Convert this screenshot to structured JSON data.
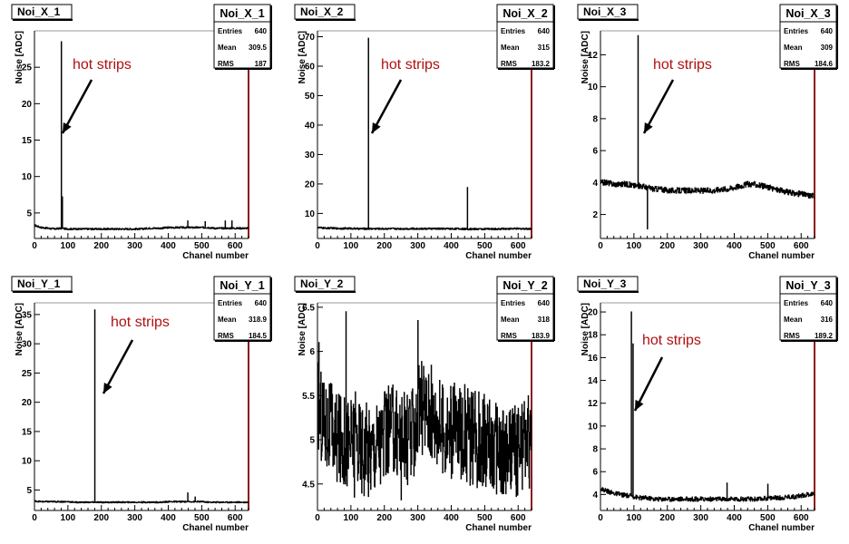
{
  "page": {
    "background": "#ffffff"
  },
  "chart_data": [
    {
      "type": "line",
      "title": "Noi_X_1",
      "xlabel": "Chanel number",
      "ylabel": "Noise [ADC]",
      "xlim": [
        0,
        640
      ],
      "ylim": [
        1.5,
        30
      ],
      "xticks": [
        0,
        100,
        200,
        300,
        400,
        500,
        600
      ],
      "yticks": [
        5,
        10,
        15,
        20,
        25
      ],
      "stats": {
        "name": "Noi_X_1",
        "rows": [
          {
            "label": "Entries",
            "value": "640"
          },
          {
            "label": "Mean",
            "value": "309.5"
          },
          {
            "label": "RMS",
            "value": "187"
          }
        ]
      },
      "series": [
        {
          "base": [
            3.3,
            3.0,
            2.9,
            2.8,
            2.9,
            2.8,
            2.8,
            2.8,
            2.8,
            2.8,
            2.8,
            2.8,
            2.8,
            2.8,
            2.8,
            2.8,
            2.8,
            2.9,
            2.9,
            2.9,
            3.0,
            3.0,
            3.0,
            3.0,
            3.0,
            3.0,
            3.0,
            2.9,
            2.9,
            2.9,
            2.9,
            2.9,
            2.9
          ],
          "spikes": [
            [
              80,
              28.5
            ],
            [
              83,
              7.2
            ],
            [
              458,
              3.9
            ],
            [
              510,
              3.8
            ],
            [
              570,
              3.9
            ],
            [
              590,
              3.9
            ]
          ],
          "noise": 0.12
        }
      ],
      "annotations": [
        {
          "text": "hot strips",
          "color": "#b01010"
        }
      ]
    },
    {
      "type": "line",
      "title": "Noi_X_2",
      "xlabel": "Chanel number",
      "ylabel": "Noise [ADC]",
      "xlim": [
        0,
        640
      ],
      "ylim": [
        1.5,
        72
      ],
      "xticks": [
        0,
        100,
        200,
        300,
        400,
        500,
        600
      ],
      "yticks": [
        10,
        20,
        30,
        40,
        50,
        60,
        70
      ],
      "stats": {
        "name": "Noi_X_2",
        "rows": [
          {
            "label": "Entries",
            "value": "640"
          },
          {
            "label": "Mean",
            "value": "315"
          },
          {
            "label": "RMS",
            "value": "183.2"
          }
        ]
      },
      "series": [
        {
          "base": [
            5.2,
            5.0,
            5.0,
            4.9,
            4.9,
            4.9,
            4.8,
            4.8,
            4.8,
            4.8,
            4.8,
            4.8,
            4.8,
            4.8,
            4.8,
            4.8,
            4.8,
            4.8,
            4.8,
            4.8,
            4.8,
            4.8,
            4.7,
            4.7,
            4.7,
            4.7,
            4.7,
            4.7,
            4.8,
            4.8,
            4.8,
            4.8,
            4.8
          ],
          "spikes": [
            [
              152,
              69.5
            ],
            [
              448,
              18.8
            ]
          ],
          "noise": 0.3
        }
      ],
      "annotations": [
        {
          "text": "hot strips",
          "color": "#b01010"
        }
      ]
    },
    {
      "type": "line",
      "title": "Noi_X_3",
      "xlabel": "Chanel number",
      "ylabel": "Noise [ADC]",
      "xlim": [
        0,
        640
      ],
      "ylim": [
        0.5,
        13.5
      ],
      "xticks": [
        0,
        100,
        200,
        300,
        400,
        500,
        600
      ],
      "yticks": [
        2,
        4,
        6,
        8,
        10,
        12
      ],
      "stats": {
        "name": "Noi_X_3",
        "rows": [
          {
            "label": "Entries",
            "value": "640"
          },
          {
            "label": "Mean",
            "value": "309"
          },
          {
            "label": "RMS",
            "value": "184.6"
          }
        ]
      },
      "series": [
        {
          "base": [
            4.0,
            4.0,
            3.9,
            3.9,
            3.9,
            3.8,
            3.8,
            3.7,
            3.6,
            3.6,
            3.5,
            3.5,
            3.5,
            3.5,
            3.5,
            3.5,
            3.5,
            3.5,
            3.6,
            3.6,
            3.7,
            3.8,
            3.9,
            3.9,
            3.8,
            3.7,
            3.6,
            3.5,
            3.4,
            3.3,
            3.3,
            3.2,
            3.2
          ],
          "spikes": [
            [
              112,
              13.2
            ],
            [
              140,
              1.1
            ]
          ],
          "noise": 0.18
        }
      ],
      "annotations": [
        {
          "text": "hot strips",
          "color": "#b01010"
        }
      ]
    },
    {
      "type": "line",
      "title": "Noi_Y_1",
      "xlabel": "Chanel number",
      "ylabel": "Noise [ADC]",
      "xlim": [
        0,
        640
      ],
      "ylim": [
        1.5,
        37
      ],
      "xticks": [
        0,
        100,
        200,
        300,
        400,
        500,
        600
      ],
      "yticks": [
        5,
        10,
        15,
        20,
        25,
        30,
        35
      ],
      "stats": {
        "name": "Noi_Y_1",
        "rows": [
          {
            "label": "Entries",
            "value": "640"
          },
          {
            "label": "Mean",
            "value": "318.9"
          },
          {
            "label": "RMS",
            "value": "184.5"
          }
        ]
      },
      "series": [
        {
          "base": [
            3.1,
            3.0,
            3.0,
            3.0,
            3.0,
            3.0,
            2.9,
            2.9,
            2.9,
            2.9,
            2.9,
            2.9,
            2.9,
            2.9,
            2.9,
            2.9,
            2.9,
            2.9,
            2.9,
            2.9,
            3.0,
            3.0,
            3.0,
            3.0,
            3.0,
            3.0,
            2.9,
            2.9,
            2.9,
            2.9,
            2.9,
            2.9,
            2.9
          ],
          "spikes": [
            [
              180,
              35.8
            ],
            [
              458,
              4.5
            ],
            [
              480,
              3.8
            ]
          ],
          "noise": 0.12
        }
      ],
      "annotations": [
        {
          "text": "hot strips",
          "color": "#b01010"
        }
      ]
    },
    {
      "type": "line",
      "title": "Noi_Y_2",
      "xlabel": "Chanel number",
      "ylabel": "Noise [ADC]",
      "xlim": [
        0,
        640
      ],
      "ylim": [
        4.2,
        6.55
      ],
      "xticks": [
        0,
        100,
        200,
        300,
        400,
        500,
        600
      ],
      "yticks": [
        4.5,
        5,
        5.5,
        6,
        6.5
      ],
      "stats": {
        "name": "Noi_Y_2",
        "rows": [
          {
            "label": "Entries",
            "value": "640"
          },
          {
            "label": "Mean",
            "value": "318"
          },
          {
            "label": "RMS",
            "value": "183.9"
          }
        ]
      },
      "series": [
        {
          "base": [
            5.4,
            5.2,
            5.1,
            5.0,
            5.0,
            5.0,
            5.0,
            4.9,
            4.9,
            5.0,
            5.0,
            5.1,
            5.1,
            5.0,
            5.0,
            5.3,
            5.4,
            5.3,
            5.2,
            5.1,
            5.1,
            5.1,
            5.1,
            5.0,
            5.0,
            5.0,
            4.9,
            4.9,
            4.8,
            4.9,
            4.9,
            5.0,
            5.0
          ],
          "spikes": [
            [
              4,
              6.1
            ],
            [
              85,
              6.45
            ],
            [
              300,
              6.35
            ],
            [
              110,
              4.35
            ],
            [
              250,
              4.32
            ]
          ],
          "noise": 0.55
        }
      ],
      "annotations": []
    },
    {
      "type": "line",
      "title": "Noi_Y_3",
      "xlabel": "Chanel number",
      "ylabel": "Noise [ADC]",
      "xlim": [
        0,
        640
      ],
      "ylim": [
        2.6,
        20.8
      ],
      "xticks": [
        0,
        100,
        200,
        300,
        400,
        500,
        600
      ],
      "yticks": [
        4,
        6,
        8,
        10,
        12,
        14,
        16,
        18,
        20
      ],
      "stats": {
        "name": "Noi_Y_3",
        "rows": [
          {
            "label": "Entries",
            "value": "640"
          },
          {
            "label": "Mean",
            "value": "316"
          },
          {
            "label": "RMS",
            "value": "189.2"
          }
        ]
      },
      "series": [
        {
          "base": [
            4.5,
            4.3,
            4.1,
            4.0,
            3.9,
            3.8,
            3.7,
            3.7,
            3.6,
            3.6,
            3.6,
            3.6,
            3.6,
            3.6,
            3.6,
            3.6,
            3.6,
            3.6,
            3.6,
            3.6,
            3.6,
            3.6,
            3.6,
            3.6,
            3.6,
            3.7,
            3.7,
            3.7,
            3.8,
            3.8,
            3.9,
            4.0,
            4.1
          ],
          "spikes": [
            [
              92,
              20.0
            ],
            [
              97,
              17.2
            ],
            [
              378,
              5.0
            ],
            [
              500,
              4.9
            ]
          ],
          "noise": 0.2
        }
      ],
      "annotations": [
        {
          "text": "hot strips",
          "color": "#b01010"
        }
      ]
    }
  ]
}
